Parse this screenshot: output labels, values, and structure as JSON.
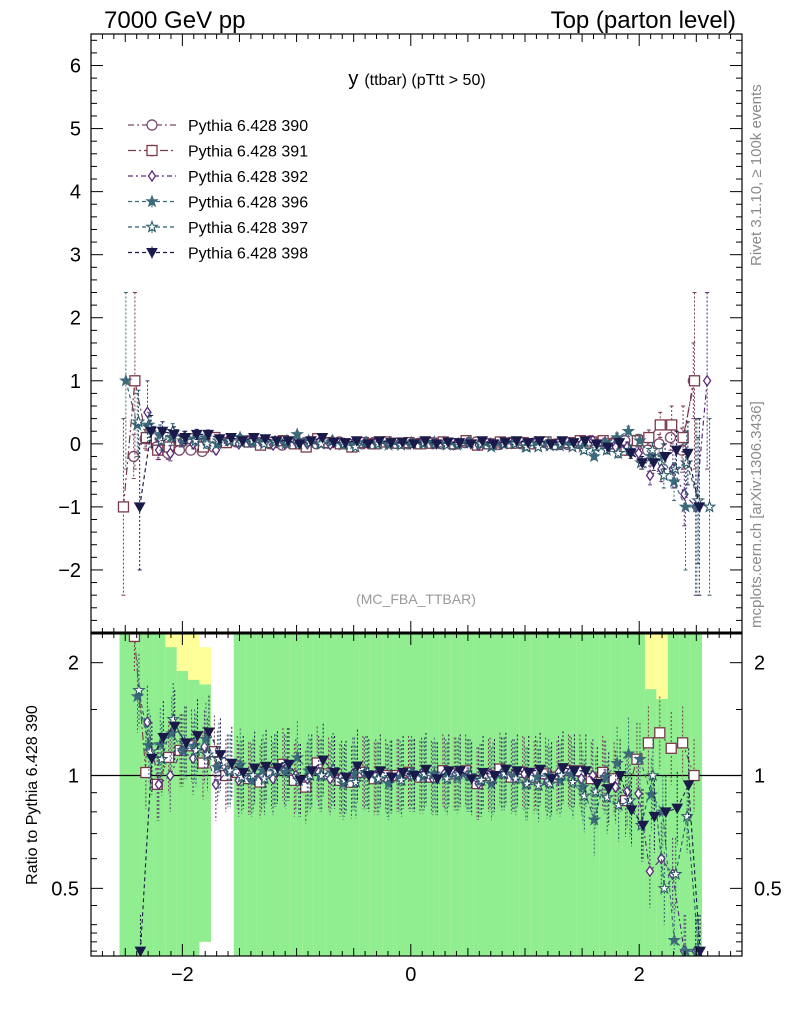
{
  "header": {
    "left": "7000 GeV pp",
    "right": "Top (parton level)"
  },
  "side": {
    "rivet": "Rivet 3.1.10, ≥ 100k events",
    "mcplots": "mcplots.cern.ch [arXiv:1306.3436]"
  },
  "colors": {
    "band_green": "#90ee90",
    "band_yellow": "#ffff99",
    "axis": "#000000"
  },
  "chart_data": [
    {
      "type": "line",
      "title_main": "y",
      "title_sub": "(ttbar)  (pTtt > 50)",
      "watermark": "(MC_FBA_TTBAR)",
      "ylim": [
        -3,
        6.5
      ],
      "xlim": [
        -2.8,
        2.9
      ],
      "yticks": [
        -2,
        -1,
        0,
        1,
        2,
        3,
        4,
        5,
        6
      ],
      "xticks": [
        -2,
        0,
        2
      ],
      "legend_position": "top-left",
      "x": [
        -2.5,
        -2.4,
        -2.3,
        -2.2,
        -2.1,
        -2.0,
        -1.9,
        -1.8,
        -1.7,
        -1.6,
        -1.5,
        -1.4,
        -1.3,
        -1.2,
        -1.1,
        -1.0,
        -0.9,
        -0.8,
        -0.7,
        -0.6,
        -0.5,
        -0.4,
        -0.3,
        -0.2,
        -0.1,
        0.0,
        0.1,
        0.2,
        0.3,
        0.4,
        0.5,
        0.6,
        0.7,
        0.8,
        0.9,
        1.0,
        1.1,
        1.2,
        1.3,
        1.4,
        1.5,
        1.6,
        1.7,
        1.8,
        1.9,
        2.0,
        2.1,
        2.2,
        2.3,
        2.4,
        2.5,
        2.6
      ],
      "series": [
        {
          "name": "Pythia 6.428 390",
          "color": "#7b4a6a",
          "marker": "circle-open",
          "dash": "6,3,2,3",
          "values": [
            null,
            -0.2,
            0.08,
            -0.05,
            -0.15,
            -0.1,
            -0.1,
            -0.12,
            -0.05,
            0.02,
            0.03,
            0.05,
            0.02,
            0.0,
            -0.02,
            0.03,
            0.02,
            0.0,
            0.01,
            0.03,
            -0.01,
            0.0,
            0.02,
            0.03,
            0.01,
            0.0,
            0.01,
            0.02,
            0.0,
            -0.01,
            0.02,
            0.03,
            0.0,
            -0.01,
            0.02,
            0.0,
            0.01,
            0.02,
            0.0,
            -0.01,
            0.02,
            0.05,
            0.03,
            0.02,
            0.05,
            -0.05,
            -0.1,
            0.0,
            0.1,
            -0.1,
            1.0,
            null
          ],
          "err": [
            0,
            0.35,
            0.15,
            0.12,
            0.1,
            0.08,
            0.07,
            0.06,
            0.05,
            0.05,
            0.04,
            0.04,
            0.04,
            0.04,
            0.04,
            0.03,
            0.03,
            0.03,
            0.03,
            0.03,
            0.03,
            0.03,
            0.03,
            0.03,
            0.03,
            0.03,
            0.03,
            0.03,
            0.03,
            0.03,
            0.03,
            0.03,
            0.03,
            0.03,
            0.03,
            0.04,
            0.04,
            0.04,
            0.04,
            0.04,
            0.05,
            0.05,
            0.06,
            0.07,
            0.08,
            0.1,
            0.12,
            0.15,
            0.2,
            0.35,
            0.6,
            0
          ]
        },
        {
          "name": "Pythia 6.428 391",
          "color": "#7b3a4a",
          "marker": "square-open",
          "dash": "8,3,2,3",
          "values": [
            -1.0,
            1.0,
            0.1,
            -0.1,
            -0.05,
            0.05,
            0.08,
            -0.05,
            0.1,
            0.02,
            0.05,
            0.03,
            -0.02,
            0.02,
            0.05,
            0.0,
            -0.05,
            0.08,
            0.02,
            0.0,
            -0.05,
            0.02,
            0.0,
            0.03,
            0.01,
            0.02,
            0.0,
            0.01,
            0.03,
            0.0,
            0.05,
            -0.02,
            0.0,
            0.03,
            0.01,
            0.02,
            0.0,
            0.03,
            -0.01,
            0.02,
            0.05,
            0.03,
            0.05,
            0.0,
            -0.1,
            0.05,
            0.1,
            0.3,
            0.3,
            0.1,
            1.0,
            null
          ],
          "err": [
            1.4,
            1.4,
            0.2,
            0.15,
            0.1,
            0.1,
            0.08,
            0.07,
            0.06,
            0.05,
            0.05,
            0.05,
            0.04,
            0.04,
            0.04,
            0.04,
            0.03,
            0.03,
            0.03,
            0.03,
            0.03,
            0.03,
            0.03,
            0.03,
            0.03,
            0.03,
            0.03,
            0.03,
            0.03,
            0.03,
            0.03,
            0.03,
            0.03,
            0.03,
            0.03,
            0.04,
            0.04,
            0.04,
            0.04,
            0.04,
            0.05,
            0.05,
            0.06,
            0.07,
            0.08,
            0.1,
            0.12,
            0.2,
            0.3,
            0.5,
            1.4,
            0
          ]
        },
        {
          "name": "Pythia 6.428 392",
          "color": "#5a2a7a",
          "marker": "diamond-open",
          "dash": "5,3,2,3",
          "values": [
            null,
            null,
            0.5,
            -0.1,
            -0.15,
            0.05,
            0.0,
            0.05,
            -0.1,
            0.05,
            0.0,
            0.03,
            0.02,
            -0.02,
            0.01,
            0.03,
            0.0,
            0.02,
            -0.01,
            0.02,
            0.0,
            0.01,
            0.02,
            0.0,
            0.01,
            0.0,
            0.02,
            0.0,
            0.01,
            0.0,
            0.02,
            -0.02,
            0.01,
            0.0,
            0.02,
            0.01,
            0.03,
            -0.02,
            0.02,
            0.01,
            0.0,
            0.05,
            0.02,
            -0.05,
            -0.05,
            -0.15,
            -0.5,
            -0.4,
            -0.4,
            -0.8,
            -1.0,
            1.0
          ],
          "err": [
            0,
            0,
            0.5,
            0.15,
            0.12,
            0.1,
            0.08,
            0.07,
            0.06,
            0.05,
            0.05,
            0.04,
            0.04,
            0.04,
            0.04,
            0.03,
            0.03,
            0.03,
            0.03,
            0.03,
            0.03,
            0.03,
            0.03,
            0.03,
            0.03,
            0.03,
            0.03,
            0.03,
            0.03,
            0.03,
            0.03,
            0.03,
            0.03,
            0.03,
            0.03,
            0.04,
            0.04,
            0.04,
            0.04,
            0.04,
            0.05,
            0.05,
            0.06,
            0.07,
            0.08,
            0.1,
            0.15,
            0.2,
            0.3,
            0.5,
            1.4,
            1.4
          ]
        },
        {
          "name": "Pythia 6.428 396",
          "color": "#3d6a7a",
          "marker": "star-filled",
          "dash": "4,3",
          "values": [
            1.0,
            0.3,
            0.3,
            0.15,
            0.1,
            0.05,
            0.08,
            0.1,
            0.0,
            0.05,
            0.1,
            0.02,
            0.05,
            0.03,
            0.0,
            0.15,
            0.05,
            0.0,
            0.03,
            -0.02,
            0.0,
            0.02,
            0.0,
            -0.02,
            0.0,
            0.02,
            0.0,
            0.03,
            0.0,
            -0.02,
            0.02,
            0.0,
            -0.05,
            0.0,
            0.02,
            -0.05,
            0.0,
            0.02,
            -0.03,
            0.0,
            -0.05,
            -0.2,
            0.02,
            0.1,
            0.2,
            0.05,
            -0.2,
            -0.2,
            -0.6,
            -1.0,
            -1.0,
            null
          ],
          "err": [
            1.4,
            0.5,
            0.2,
            0.15,
            0.12,
            0.1,
            0.08,
            0.07,
            0.06,
            0.05,
            0.05,
            0.05,
            0.04,
            0.04,
            0.04,
            0.04,
            0.03,
            0.03,
            0.03,
            0.03,
            0.03,
            0.03,
            0.03,
            0.03,
            0.03,
            0.03,
            0.03,
            0.03,
            0.03,
            0.03,
            0.03,
            0.03,
            0.03,
            0.03,
            0.03,
            0.04,
            0.04,
            0.04,
            0.04,
            0.04,
            0.05,
            0.05,
            0.06,
            0.07,
            0.08,
            0.1,
            0.12,
            0.2,
            0.3,
            1.0,
            1.4,
            0
          ]
        },
        {
          "name": "Pythia 6.428 397",
          "color": "#2d5a6a",
          "marker": "star-open",
          "dash": "4,3",
          "values": [
            null,
            0.35,
            0.25,
            0.05,
            0.2,
            0.1,
            0.05,
            0.0,
            0.05,
            0.05,
            0.02,
            0.05,
            0.0,
            0.03,
            0.05,
            0.0,
            0.02,
            0.0,
            0.05,
            0.0,
            -0.05,
            0.02,
            0.0,
            0.02,
            -0.02,
            0.0,
            0.02,
            0.0,
            -0.02,
            0.0,
            0.02,
            0.0,
            -0.02,
            0.0,
            0.0,
            -0.05,
            -0.05,
            -0.03,
            0.0,
            -0.05,
            -0.1,
            -0.05,
            -0.1,
            -0.15,
            -0.1,
            -0.3,
            -0.1,
            -0.5,
            -0.4,
            -0.3,
            -0.9,
            -1.0
          ],
          "err": [
            0,
            0.5,
            0.2,
            0.15,
            0.12,
            0.1,
            0.08,
            0.07,
            0.06,
            0.05,
            0.05,
            0.05,
            0.04,
            0.04,
            0.04,
            0.04,
            0.03,
            0.03,
            0.03,
            0.03,
            0.03,
            0.03,
            0.03,
            0.03,
            0.03,
            0.03,
            0.03,
            0.03,
            0.03,
            0.03,
            0.03,
            0.03,
            0.03,
            0.03,
            0.03,
            0.04,
            0.04,
            0.04,
            0.04,
            0.04,
            0.05,
            0.05,
            0.06,
            0.07,
            0.08,
            0.1,
            0.12,
            0.2,
            0.3,
            0.5,
            1.0,
            1.4
          ]
        },
        {
          "name": "Pythia 6.428 398",
          "color": "#1a1a4a",
          "marker": "triangle-down-filled",
          "dash": "4,3",
          "values": [
            null,
            -1.0,
            0.2,
            0.2,
            0.15,
            0.1,
            0.15,
            0.15,
            0.08,
            0.1,
            0.05,
            0.1,
            0.08,
            0.05,
            0.05,
            0.0,
            0.05,
            0.1,
            0.03,
            0.02,
            0.05,
            0.0,
            0.05,
            0.02,
            0.03,
            0.0,
            0.05,
            0.0,
            0.03,
            0.02,
            0.0,
            0.05,
            0.0,
            0.03,
            0.05,
            0.02,
            0.05,
            0.0,
            0.05,
            0.02,
            0.05,
            0.0,
            -0.05,
            0.02,
            -0.15,
            -0.3,
            -0.3,
            -0.2,
            -0.1,
            -0.15,
            -1.0,
            null
          ],
          "err": [
            0,
            1.0,
            0.25,
            0.15,
            0.12,
            0.1,
            0.08,
            0.07,
            0.06,
            0.05,
            0.05,
            0.05,
            0.04,
            0.04,
            0.04,
            0.04,
            0.03,
            0.03,
            0.03,
            0.03,
            0.03,
            0.03,
            0.03,
            0.03,
            0.03,
            0.03,
            0.03,
            0.03,
            0.03,
            0.03,
            0.03,
            0.03,
            0.03,
            0.03,
            0.03,
            0.04,
            0.04,
            0.04,
            0.04,
            0.04,
            0.05,
            0.05,
            0.06,
            0.07,
            0.08,
            0.1,
            0.12,
            0.2,
            0.3,
            0.5,
            1.4,
            0
          ]
        }
      ]
    },
    {
      "type": "line",
      "ylabel": "Ratio to Pythia 6.428 390",
      "yscale": "log",
      "ylim": [
        0.33,
        2.4
      ],
      "yticks": [
        0.5,
        1,
        2
      ],
      "ytick_labels": [
        "0.5",
        "1",
        "2"
      ],
      "xticks": [
        -2,
        0,
        2
      ],
      "reference_line": 1,
      "band_edges": [
        -2.5,
        -2.4,
        -2.3,
        -2.2,
        -2.1,
        -2.0,
        -1.9,
        -1.8,
        -1.7,
        -1.6,
        -1.5,
        -1.4,
        -1.3,
        -1.2,
        -1.1,
        -1.0,
        -0.9,
        -0.8,
        -0.7,
        -0.6,
        -0.5,
        -0.4,
        -0.3,
        -0.2,
        -0.1,
        0.0,
        0.1,
        0.2,
        0.3,
        0.4,
        0.5,
        0.6,
        0.7,
        0.8,
        0.9,
        1.0,
        1.1,
        1.2,
        1.3,
        1.4,
        1.5,
        1.6,
        1.7,
        1.8,
        1.9,
        2.0,
        2.1,
        2.2,
        2.3,
        2.4,
        2.5,
        2.6
      ],
      "band_green_upper": [
        2.4,
        2.4,
        2.4,
        2.4,
        2.2,
        1.9,
        1.8,
        1.75,
        0,
        0,
        2.4,
        2.4,
        2.4,
        2.4,
        2.4,
        2.4,
        2.4,
        2.4,
        2.4,
        2.4,
        2.4,
        2.4,
        2.4,
        2.4,
        2.4,
        2.4,
        2.4,
        2.4,
        2.4,
        2.4,
        2.4,
        2.4,
        2.4,
        2.4,
        2.4,
        2.4,
        2.4,
        2.4,
        2.4,
        2.4,
        2.4,
        2.4,
        2.4,
        2.4,
        2.4,
        2.4,
        1.7,
        1.6,
        2.4,
        2.4,
        2.4,
        0
      ],
      "band_yellow_upper": [
        2.4,
        2.4,
        2.4,
        2.4,
        2.4,
        2.4,
        2.4,
        2.2,
        0,
        0,
        2.4,
        2.4,
        2.4,
        2.4,
        2.4,
        2.4,
        2.4,
        2.4,
        2.4,
        2.4,
        2.4,
        2.4,
        2.4,
        2.4,
        2.4,
        2.4,
        2.4,
        2.4,
        2.4,
        2.4,
        2.4,
        2.4,
        2.4,
        2.4,
        2.4,
        2.4,
        2.4,
        2.4,
        2.4,
        2.4,
        2.4,
        2.4,
        2.4,
        2.4,
        2.4,
        2.4,
        2.4,
        2.4,
        2.4,
        2.4,
        2.4,
        0
      ],
      "band_lower": [
        0.33,
        0.33,
        0.33,
        0.33,
        0.33,
        0.33,
        0.33,
        0.36,
        0,
        0,
        0.33,
        0.33,
        0.33,
        0.33,
        0.33,
        0.33,
        0.33,
        0.33,
        0.33,
        0.33,
        0.33,
        0.33,
        0.33,
        0.33,
        0.33,
        0.33,
        0.33,
        0.33,
        0.33,
        0.33,
        0.33,
        0.33,
        0.33,
        0.33,
        0.33,
        0.33,
        0.33,
        0.33,
        0.33,
        0.33,
        0.33,
        0.33,
        0.33,
        0.33,
        0.33,
        0.33,
        0.33,
        0.33,
        0.33,
        0.33,
        0.33,
        0
      ]
    }
  ]
}
